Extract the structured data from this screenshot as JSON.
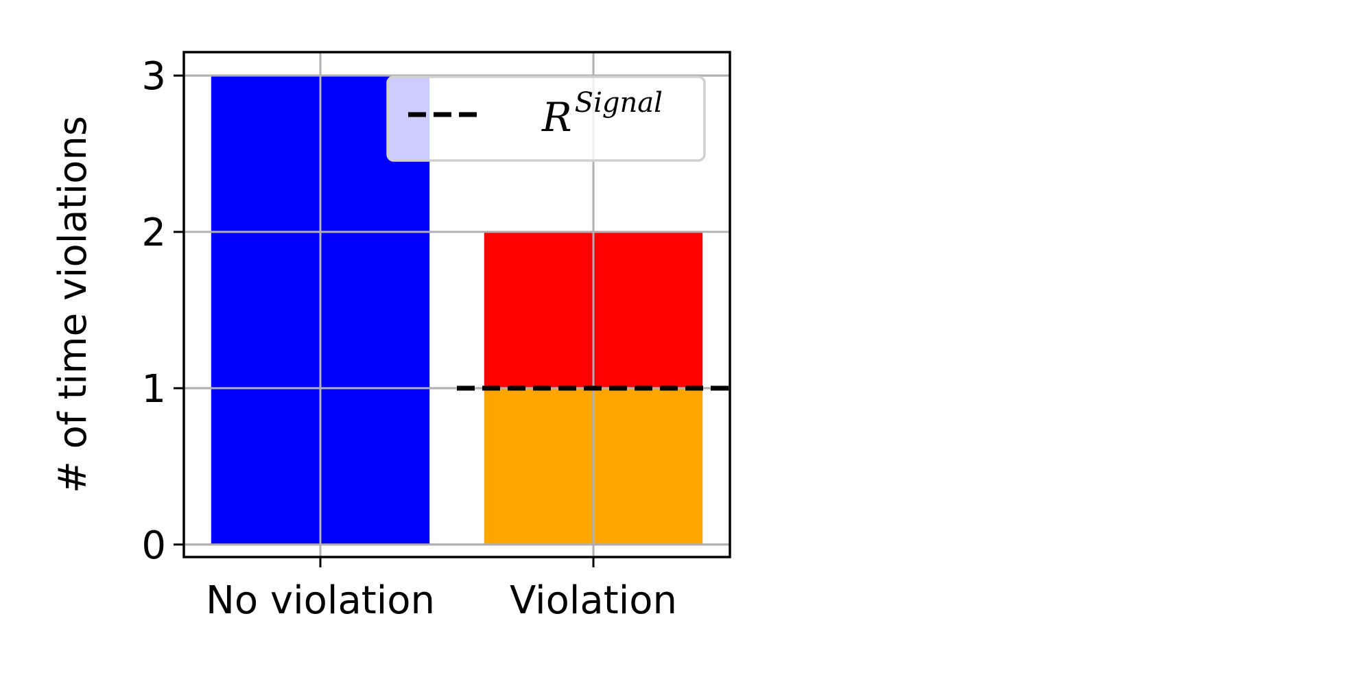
{
  "chart_data": {
    "type": "bar",
    "categories": [
      "No violation",
      "Violation"
    ],
    "ylabel": "# of time violations",
    "ylim": [
      -0.08,
      3.15
    ],
    "yticks": [
      0,
      1,
      2,
      3
    ],
    "grid": true,
    "bars": [
      {
        "category": "No violation",
        "segments": [
          {
            "bottom": 0,
            "top": 3,
            "color": "#0000ff"
          }
        ]
      },
      {
        "category": "Violation",
        "segments": [
          {
            "bottom": 0,
            "top": 1,
            "color": "#ffa500"
          },
          {
            "bottom": 1,
            "top": 2,
            "color": "#ff0000"
          }
        ]
      }
    ],
    "reference_line": {
      "y": 1,
      "category": "Violation",
      "style": "dashed",
      "color": "#000000"
    },
    "legend": {
      "placement": "top-right",
      "entries": [
        {
          "label": "R",
          "label_superscript": "Signal",
          "style": "dashed",
          "color": "#000000"
        }
      ]
    }
  }
}
